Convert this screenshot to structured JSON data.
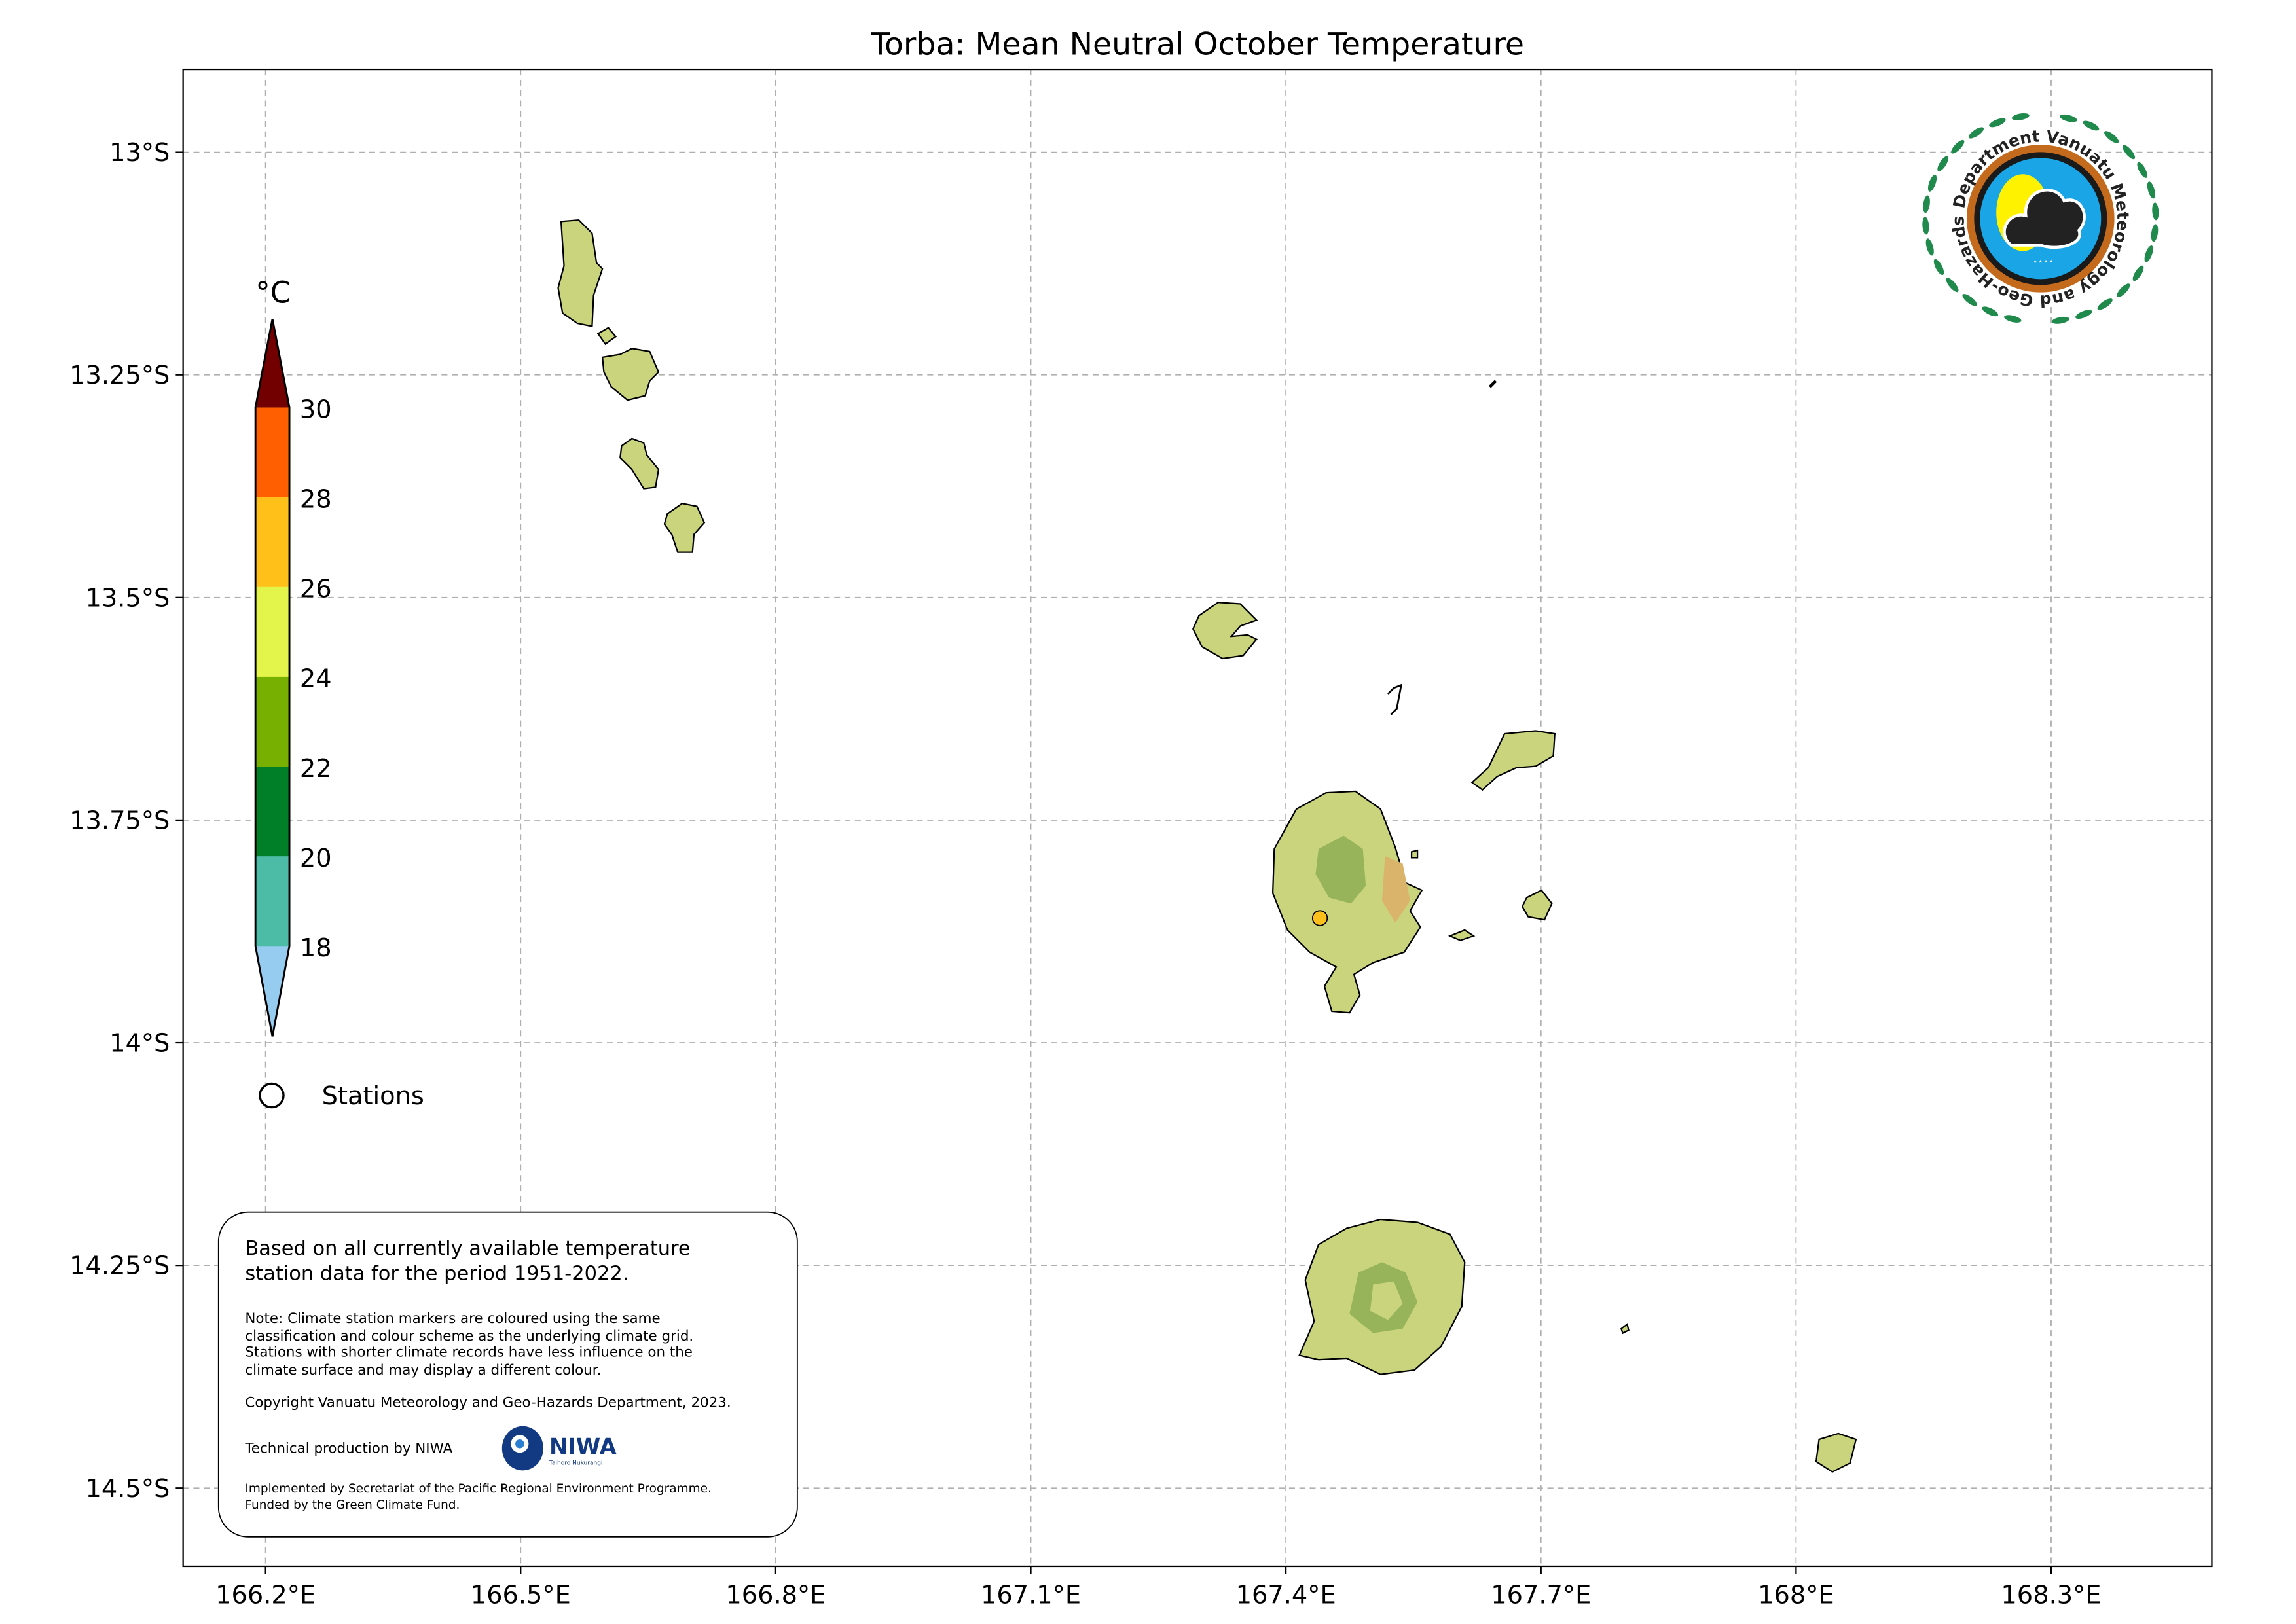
{
  "title": "Torba: Mean Neutral October Temperature",
  "map": {
    "lon_range": [
      166.103,
      168.489
    ],
    "lat_range": [
      -14.588,
      -12.907
    ],
    "gridlines": true,
    "lon_ticks": [
      {
        "value": 166.2,
        "label": "166.2°E"
      },
      {
        "value": 166.5,
        "label": "166.5°E"
      },
      {
        "value": 166.8,
        "label": "166.8°E"
      },
      {
        "value": 167.1,
        "label": "167.1°E"
      },
      {
        "value": 167.4,
        "label": "167.4°E"
      },
      {
        "value": 167.7,
        "label": "167.7°E"
      },
      {
        "value": 168.0,
        "label": "168°E"
      },
      {
        "value": 168.3,
        "label": "168.3°E"
      }
    ],
    "lat_ticks": [
      {
        "value": -13.0,
        "label": "13°S"
      },
      {
        "value": -13.25,
        "label": "13.25°S"
      },
      {
        "value": -13.5,
        "label": "13.5°S"
      },
      {
        "value": -13.75,
        "label": "13.75°S"
      },
      {
        "value": -14.0,
        "label": "14°S"
      },
      {
        "value": -14.25,
        "label": "14.25°S"
      },
      {
        "value": -14.5,
        "label": "14.5°S"
      }
    ],
    "land_color": "#c9d47c",
    "stations": [
      {
        "lon": 167.44,
        "lat": -13.86,
        "color": "#fdbf1b"
      }
    ]
  },
  "colorbar": {
    "unit": "°C",
    "ticks": [
      "30",
      "28",
      "26",
      "24",
      "22",
      "20",
      "18"
    ],
    "bins": [
      {
        "range": ">30",
        "color": "#730000"
      },
      {
        "range": "28-30",
        "color": "#ff5f00"
      },
      {
        "range": "26-28",
        "color": "#ffc01a"
      },
      {
        "range": "24-26",
        "color": "#e3f54a"
      },
      {
        "range": "22-24",
        "color": "#78b000"
      },
      {
        "range": "20-22",
        "color": "#007f28"
      },
      {
        "range": "18-20",
        "color": "#4cbca6"
      },
      {
        "range": "<18",
        "color": "#96ccef"
      }
    ]
  },
  "legend": {
    "stations_label": "Stations"
  },
  "info_box": {
    "line1": "Based on all currently available temperature",
    "line2": "station data for the period 1951-2022.",
    "note": [
      "Note: Climate station markers are coloured using the same",
      "classification and colour scheme as the underlying climate grid.",
      "Stations with shorter climate records have less influence on the",
      "climate surface and may display a different colour."
    ],
    "copyright": "Copyright Vanuatu Meteorology and Geo-Hazards Department, 2023.",
    "technical": "Technical production by NIWA",
    "niwa_logo": {
      "name": "NIWA",
      "tagline": "Taihoro Nukurangi",
      "color": "#123a82"
    },
    "implemented": "Implemented by Secretariat of the Pacific Regional Environment Programme.",
    "funded": "Funded by the Green Climate Fund."
  },
  "logo": {
    "text": "Department Vanuatu Meteorology and Geo-Hazards",
    "wreath_color": "#1f8a4c"
  }
}
